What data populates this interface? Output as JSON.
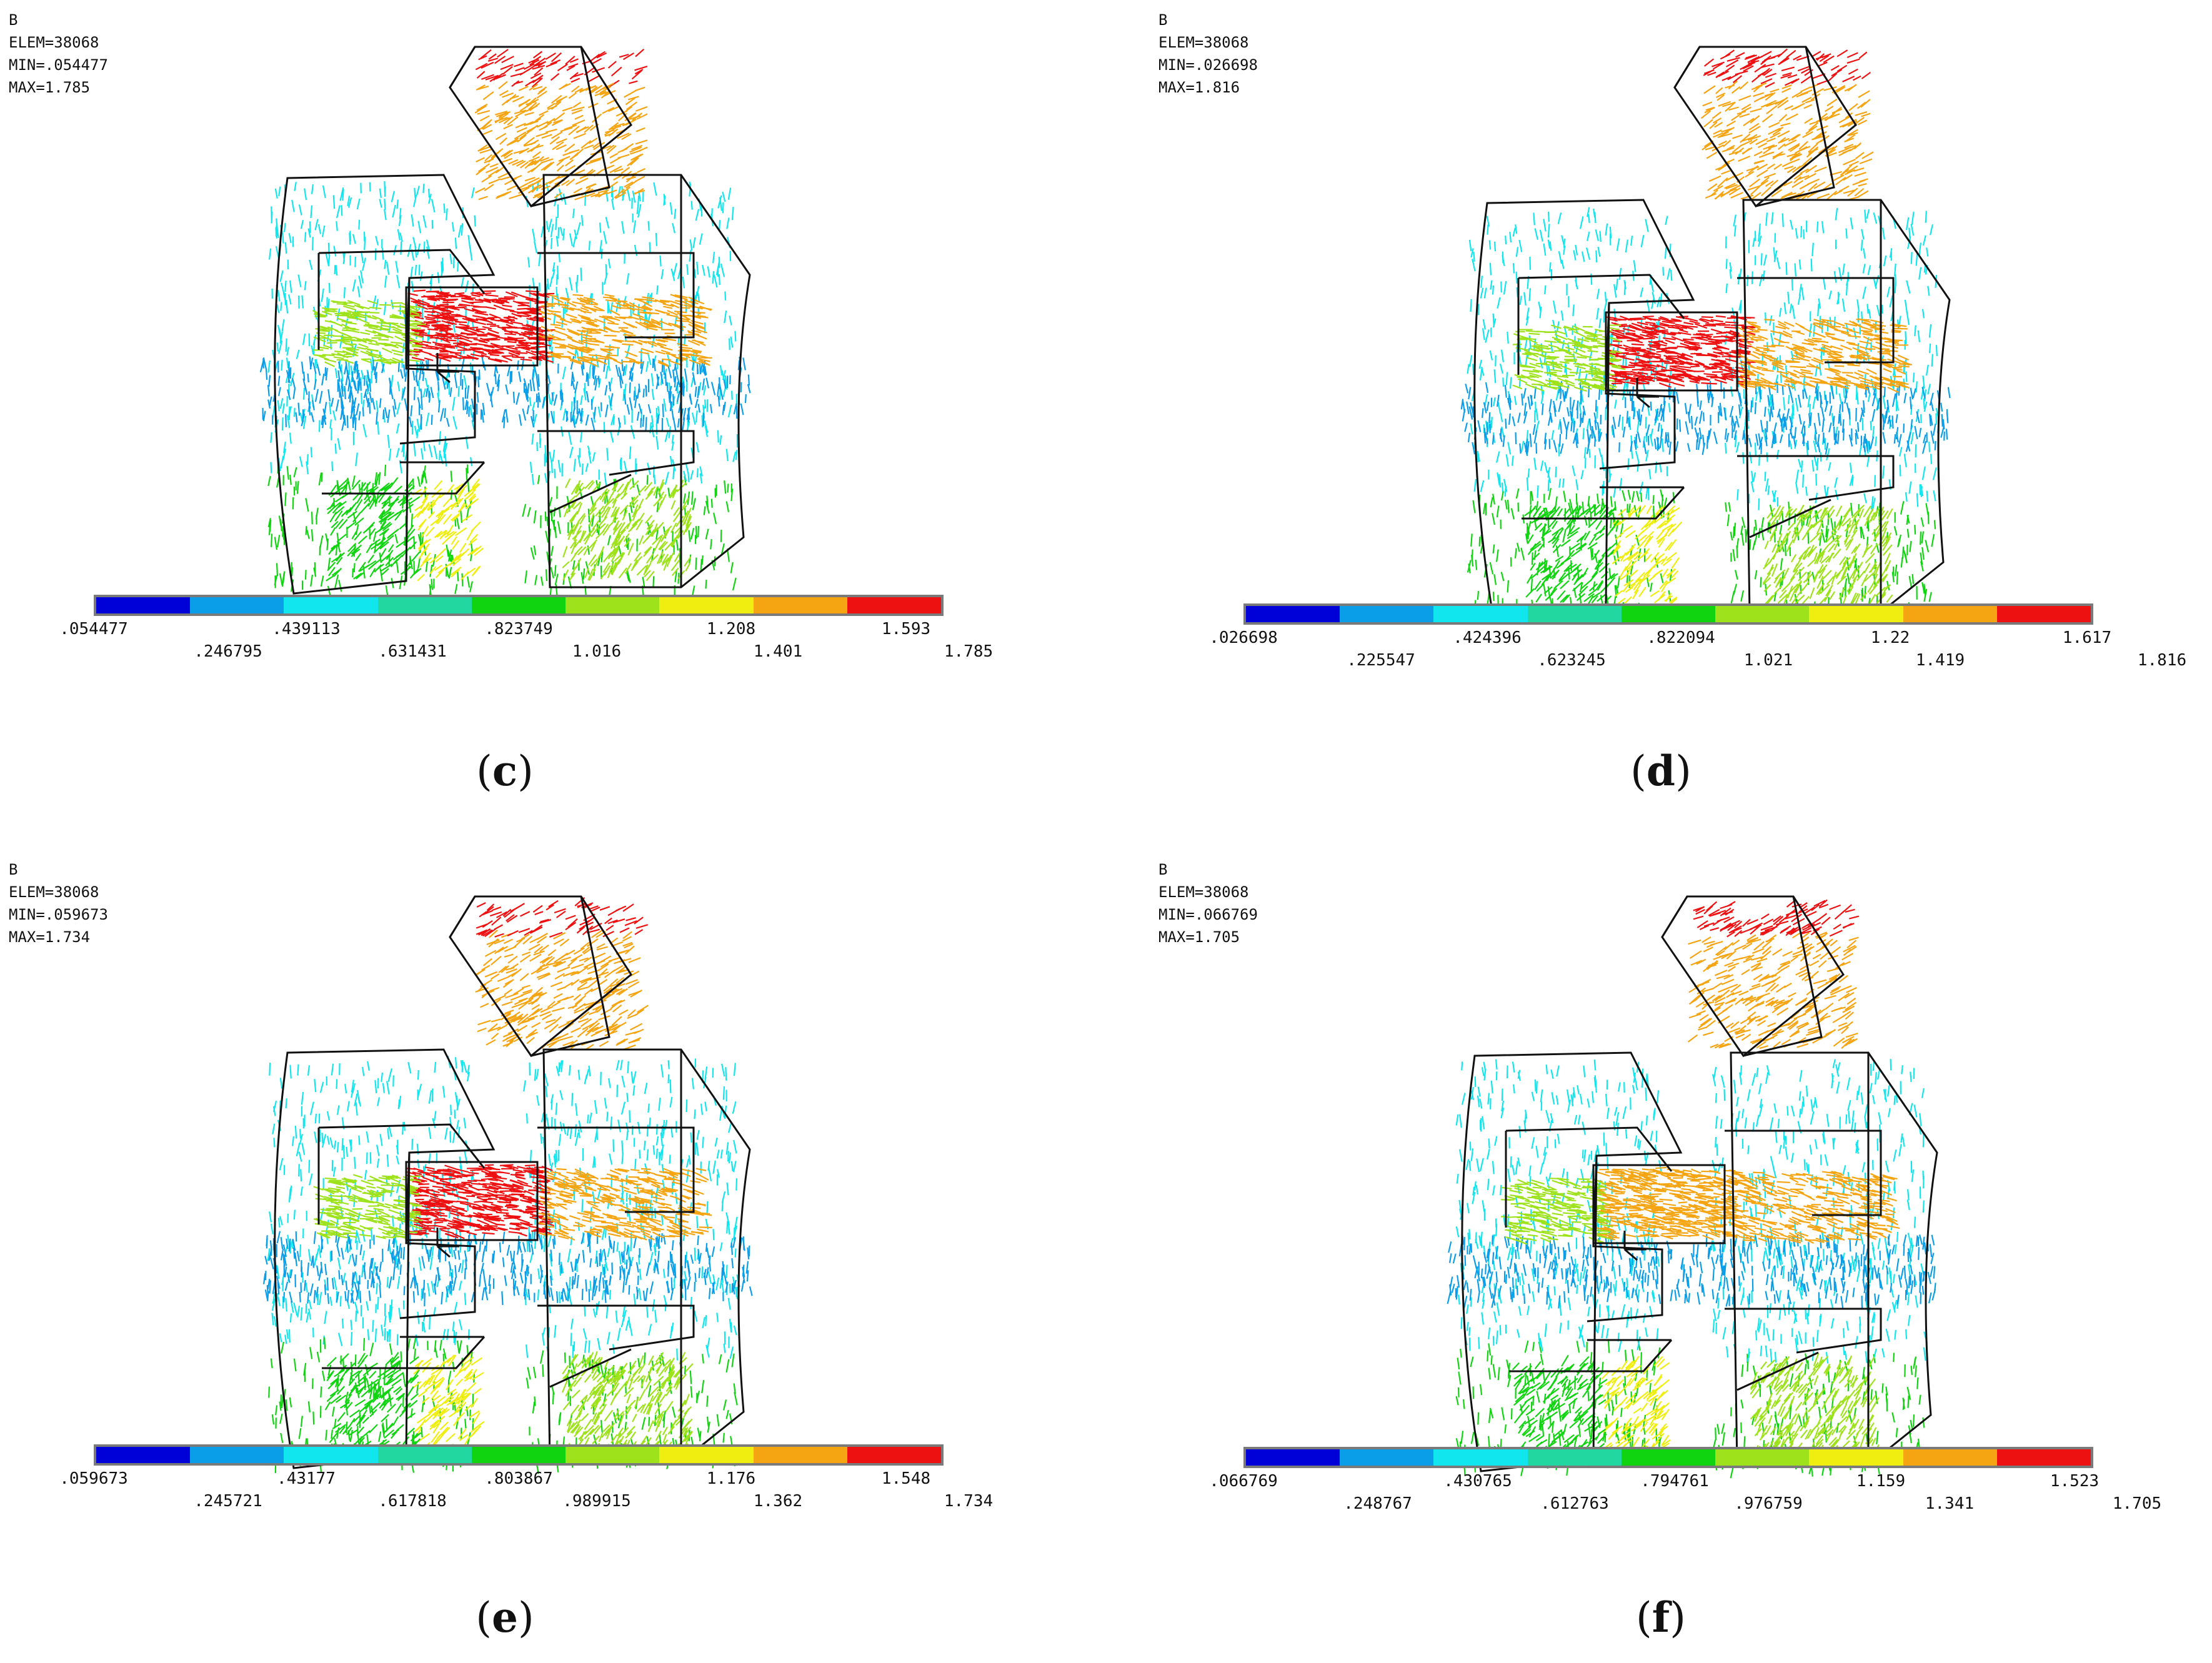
{
  "panels": [
    {
      "id": "c",
      "label": "c",
      "field": "B",
      "elem": "ELEM=38068",
      "min": "MIN=.054477",
      "max": "MAX=1.785",
      "ticks_top": [
        ".054477",
        ".439113",
        ".823749",
        "1.208",
        "1.593"
      ],
      "ticks_bottom": [
        ".246795",
        ".631431",
        "1.016",
        "1.401",
        "1.785"
      ]
    },
    {
      "id": "d",
      "label": "d",
      "field": "B",
      "elem": "ELEM=38068",
      "min": "MIN=.026698",
      "max": "MAX=1.816",
      "ticks_top": [
        ".026698",
        ".424396",
        ".822094",
        "1.22",
        "1.617"
      ],
      "ticks_bottom": [
        ".225547",
        ".623245",
        "1.021",
        "1.419",
        "1.816"
      ]
    },
    {
      "id": "e",
      "label": "e",
      "field": "B",
      "elem": "ELEM=38068",
      "min": "MIN=.059673",
      "max": "MAX=1.734",
      "ticks_top": [
        ".059673",
        ".43177",
        ".803867",
        "1.176",
        "1.548"
      ],
      "ticks_bottom": [
        ".245721",
        ".617818",
        ".989915",
        "1.362",
        "1.734"
      ]
    },
    {
      "id": "f",
      "label": "f",
      "field": "B",
      "elem": "ELEM=38068",
      "min": "MIN=.066769",
      "max": "MAX=1.705",
      "ticks_top": [
        ".066769",
        ".430765",
        ".794761",
        "1.159",
        "1.523"
      ],
      "ticks_bottom": [
        ".248767",
        ".612763",
        ".976759",
        "1.341",
        "1.705"
      ]
    }
  ],
  "colors": {
    "scale": [
      "#0000d8",
      "#0a9ee8",
      "#11e6ee",
      "#22d8a0",
      "#11d411",
      "#9ee21b",
      "#f0ee10",
      "#f5a412",
      "#ee1111"
    ]
  },
  "icons": {
    "axis_triad": "xyz-axis-icon"
  }
}
